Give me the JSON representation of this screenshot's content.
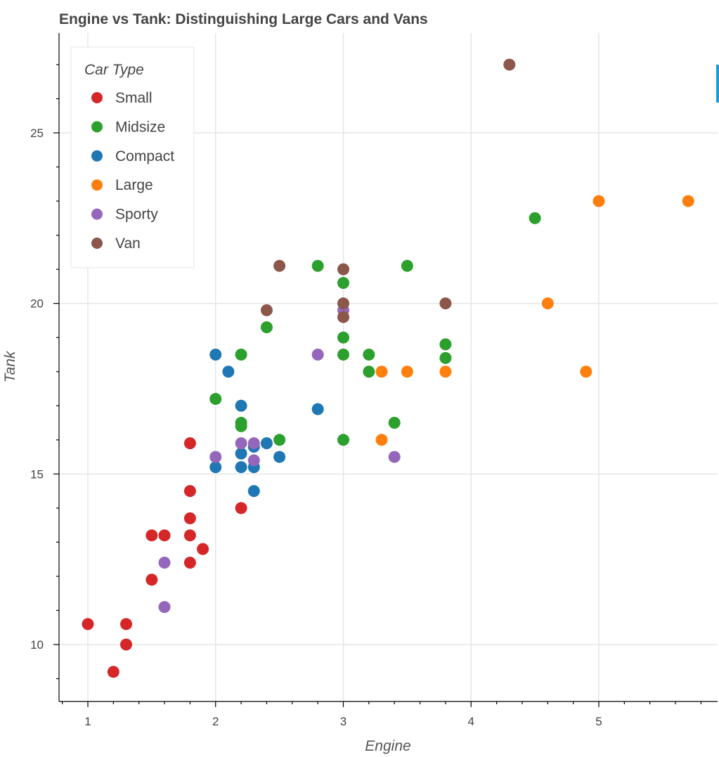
{
  "chart_data": {
    "type": "scatter",
    "title": "Engine vs Tank: Distinguishing Large Cars and Vans",
    "xlabel": "Engine",
    "ylabel": "Tank",
    "xlim": [
      0.8,
      5.9
    ],
    "ylim": [
      8.5,
      27.8
    ],
    "x_ticks": [
      1,
      2,
      3,
      4,
      5
    ],
    "y_ticks": [
      10,
      15,
      20,
      25
    ],
    "grid": true,
    "legend": {
      "title": "Car Type",
      "placement": "top-left"
    },
    "series": [
      {
        "name": "Small",
        "color": "#d62728",
        "points": [
          [
            1.0,
            10.6
          ],
          [
            1.2,
            9.2
          ],
          [
            1.3,
            10.0
          ],
          [
            1.3,
            10.6
          ],
          [
            1.5,
            11.9
          ],
          [
            1.5,
            13.2
          ],
          [
            1.6,
            13.2
          ],
          [
            1.8,
            12.4
          ],
          [
            1.8,
            13.2
          ],
          [
            1.8,
            13.7
          ],
          [
            1.8,
            14.5
          ],
          [
            1.8,
            15.9
          ],
          [
            1.9,
            12.8
          ],
          [
            2.2,
            14.0
          ]
        ]
      },
      {
        "name": "Midsize",
        "color": "#2ca02c",
        "points": [
          [
            2.0,
            17.2
          ],
          [
            2.2,
            16.4
          ],
          [
            2.2,
            16.5
          ],
          [
            2.2,
            18.5
          ],
          [
            2.4,
            19.3
          ],
          [
            2.5,
            16.0
          ],
          [
            2.8,
            21.1
          ],
          [
            3.0,
            16.0
          ],
          [
            3.0,
            18.5
          ],
          [
            3.0,
            19.0
          ],
          [
            3.0,
            20.6
          ],
          [
            3.2,
            18.0
          ],
          [
            3.2,
            18.5
          ],
          [
            3.4,
            16.5
          ],
          [
            3.5,
            21.1
          ],
          [
            3.8,
            18.4
          ],
          [
            3.8,
            18.8
          ],
          [
            4.5,
            22.5
          ]
        ]
      },
      {
        "name": "Compact",
        "color": "#1f77b4",
        "points": [
          [
            2.0,
            15.2
          ],
          [
            2.0,
            18.5
          ],
          [
            2.1,
            18.0
          ],
          [
            2.2,
            15.2
          ],
          [
            2.2,
            15.6
          ],
          [
            2.2,
            17.0
          ],
          [
            2.3,
            14.5
          ],
          [
            2.3,
            15.2
          ],
          [
            2.3,
            15.8
          ],
          [
            2.4,
            15.9
          ],
          [
            2.5,
            15.5
          ],
          [
            2.8,
            16.9
          ]
        ]
      },
      {
        "name": "Large",
        "color": "#ff7f0e",
        "points": [
          [
            3.3,
            16.0
          ],
          [
            3.3,
            18.0
          ],
          [
            3.5,
            18.0
          ],
          [
            3.8,
            18.0
          ],
          [
            4.6,
            20.0
          ],
          [
            4.9,
            18.0
          ],
          [
            5.0,
            23.0
          ],
          [
            5.7,
            23.0
          ]
        ]
      },
      {
        "name": "Sporty",
        "color": "#9467bd",
        "points": [
          [
            1.6,
            11.1
          ],
          [
            1.6,
            12.4
          ],
          [
            2.0,
            15.5
          ],
          [
            2.2,
            15.9
          ],
          [
            2.3,
            15.4
          ],
          [
            2.3,
            15.9
          ],
          [
            2.8,
            18.5
          ],
          [
            3.0,
            19.8
          ],
          [
            3.4,
            15.5
          ]
        ]
      },
      {
        "name": "Van",
        "color": "#8c564b",
        "points": [
          [
            2.4,
            19.8
          ],
          [
            2.5,
            21.1
          ],
          [
            3.0,
            19.6
          ],
          [
            3.0,
            20.0
          ],
          [
            3.0,
            21.0
          ],
          [
            3.8,
            20.0
          ],
          [
            4.3,
            27.0
          ]
        ]
      }
    ]
  }
}
